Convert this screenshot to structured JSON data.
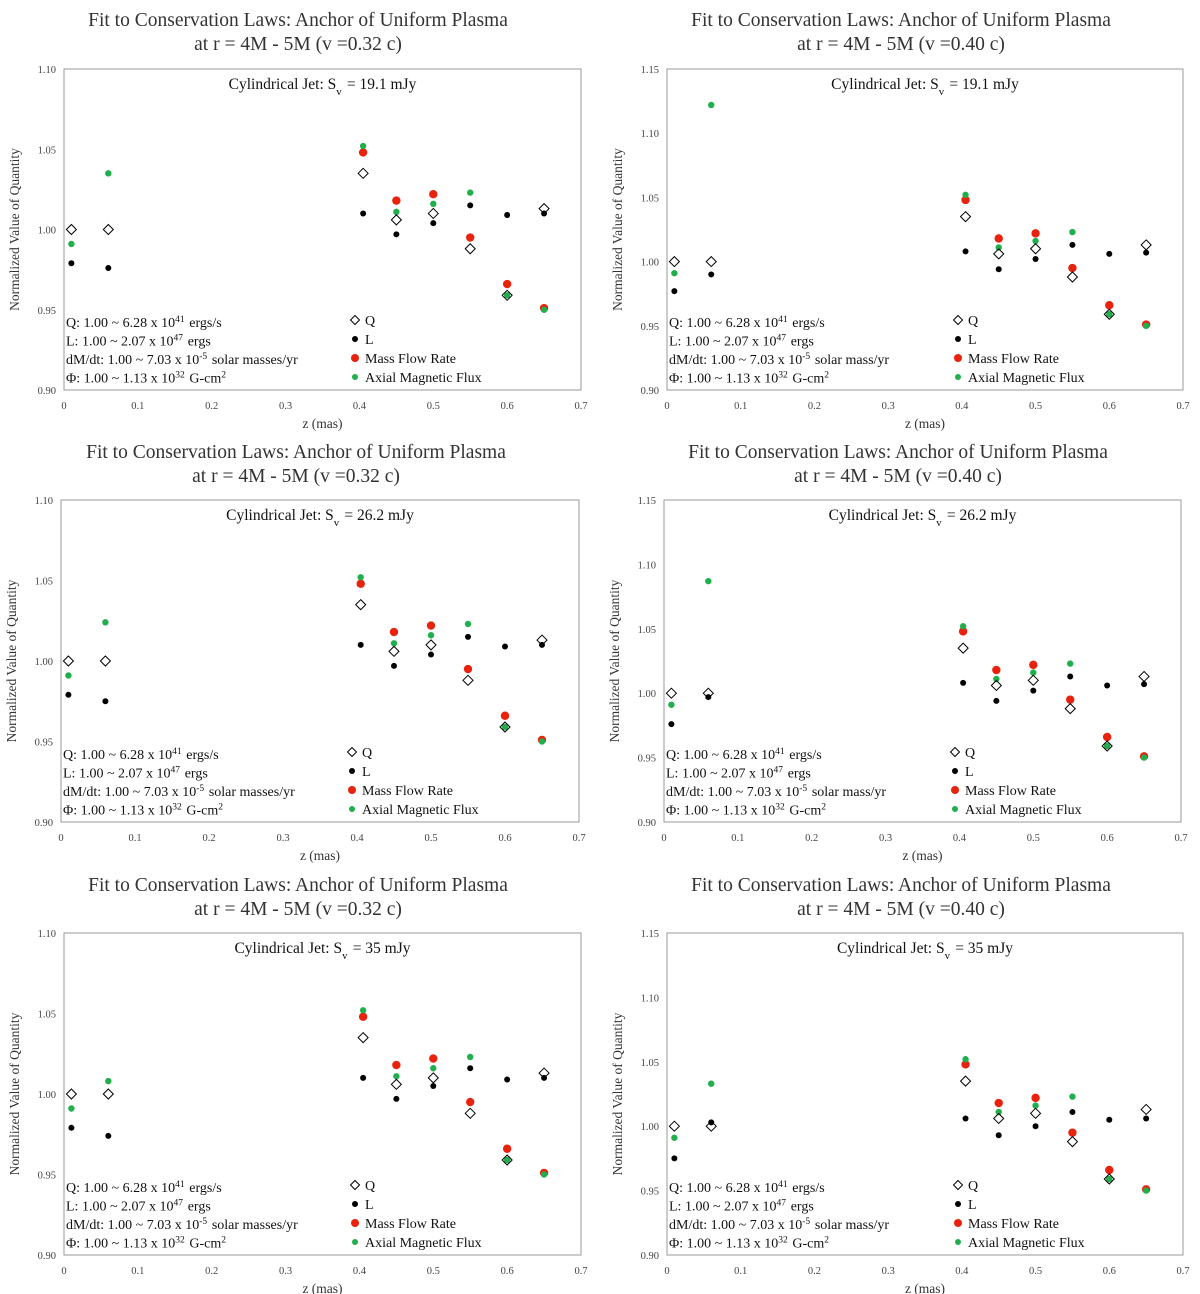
{
  "common": {
    "xlabel": "z (mas)",
    "ylabel": "Normalized Value of Quantity",
    "x_ticks": [
      "0",
      "0.1",
      "0.2",
      "0.3",
      "0.4",
      "0.5",
      "0.6",
      "0.7"
    ],
    "legend": {
      "q": "Q",
      "l": "L",
      "mdot": "Mass Flow Rate",
      "phi": "Axial Magnetic Flux"
    },
    "colors": {
      "q": "#000000",
      "l": "#000000",
      "mdot": "#e8220c",
      "phi": "#1faf4b",
      "frame": "#9a9a9a"
    }
  },
  "chart_data": [
    {
      "type": "scatter",
      "title_line1": "Fit to Conservation Laws: Anchor of Uniform Plasma",
      "title_line2": "at r = 4M - 5M (v =0.32 c)",
      "jet_label": "Cylindrical Jet: Sv = 19.1 mJy",
      "xlabel": "z (mas)",
      "ylabel": "Normalized Value of Quantity",
      "xlim": [
        0,
        0.7
      ],
      "ylim": [
        0.9,
        1.1
      ],
      "y_ticks": [
        "0.90",
        "0.95",
        "1.00",
        "1.05",
        "1.10"
      ],
      "notes": [
        "Q: 1.00 ~ 6.28 x 10^41 ergs/s",
        "L: 1.00 ~ 2.07 x 10^47 ergs",
        "dM/dt: 1.00 ~ 7.03 x 10^-5 solar masses/yr",
        "Φ: 1.00 ~ 1.13 x 10^32 G-cm^2"
      ],
      "series": [
        {
          "name": "Q",
          "x": [
            0.01,
            0.06,
            0.405,
            0.45,
            0.5,
            0.55,
            0.6,
            0.65
          ],
          "y": [
            1.0,
            1.0,
            1.035,
            1.006,
            1.01,
            0.988,
            0.959,
            1.013
          ]
        },
        {
          "name": "L",
          "x": [
            0.01,
            0.06,
            0.405,
            0.45,
            0.5,
            0.55,
            0.6,
            0.65
          ],
          "y": [
            0.979,
            0.976,
            1.01,
            0.997,
            1.004,
            1.015,
            1.009,
            1.01
          ]
        },
        {
          "name": "Mass Flow Rate",
          "x": [
            0.405,
            0.45,
            0.5,
            0.55,
            0.6,
            0.65
          ],
          "y": [
            1.048,
            1.018,
            1.022,
            0.995,
            0.966,
            0.951
          ]
        },
        {
          "name": "Axial Magnetic Flux",
          "x": [
            0.01,
            0.06,
            0.405,
            0.45,
            0.5,
            0.55,
            0.6,
            0.65
          ],
          "y": [
            0.991,
            1.035,
            1.052,
            1.011,
            1.016,
            1.023,
            0.959,
            0.95
          ]
        }
      ]
    },
    {
      "type": "scatter",
      "title_line1": "Fit to Conservation Laws: Anchor of Uniform Plasma",
      "title_line2": "at r = 4M - 5M (v =0.40 c)",
      "jet_label": "Cylindrical Jet: Sv = 19.1 mJy",
      "xlabel": "z (mas)",
      "ylabel": "Normalized Value of Quantity",
      "xlim": [
        0,
        0.7
      ],
      "ylim": [
        0.9,
        1.15
      ],
      "y_ticks": [
        "0.90",
        "0.95",
        "1.00",
        "1.05",
        "1.10",
        "1.15"
      ],
      "notes": [
        "Q: 1.00 ~ 6.28 x 10^41 ergs/s",
        "L: 1.00 ~ 2.07 x 10^47 ergs",
        "dM/dt: 1.00 ~ 7.03 x 10^-5 solar mass/yr",
        "Φ: 1.00 ~ 1.13 x 10^32 G-cm^2"
      ],
      "series": [
        {
          "name": "Q",
          "x": [
            0.01,
            0.06,
            0.405,
            0.45,
            0.5,
            0.55,
            0.6,
            0.65
          ],
          "y": [
            1.0,
            1.0,
            1.035,
            1.006,
            1.01,
            0.988,
            0.959,
            1.013
          ]
        },
        {
          "name": "L",
          "x": [
            0.01,
            0.06,
            0.405,
            0.45,
            0.5,
            0.55,
            0.6,
            0.65
          ],
          "y": [
            0.977,
            0.99,
            1.008,
            0.994,
            1.002,
            1.013,
            1.006,
            1.007
          ]
        },
        {
          "name": "Mass Flow Rate",
          "x": [
            0.405,
            0.45,
            0.5,
            0.55,
            0.6,
            0.65
          ],
          "y": [
            1.048,
            1.018,
            1.022,
            0.995,
            0.966,
            0.951
          ]
        },
        {
          "name": "Axial Magnetic Flux",
          "x": [
            0.01,
            0.06,
            0.405,
            0.45,
            0.5,
            0.55,
            0.6,
            0.65
          ],
          "y": [
            0.991,
            1.122,
            1.052,
            1.011,
            1.016,
            1.023,
            0.959,
            0.95
          ]
        }
      ]
    },
    {
      "type": "scatter",
      "title_line1": "Fit to Conservation Laws: Anchor of Uniform Plasma",
      "title_line2": "at r = 4M - 5M (v =0.32 c)",
      "jet_label": "Cylindrical Jet: Sv = 26.2 mJy",
      "xlabel": "z (mas)",
      "ylabel": "Normalized Value of Quantity",
      "xlim": [
        0,
        0.7
      ],
      "ylim": [
        0.9,
        1.1
      ],
      "y_ticks": [
        "0.90",
        "0.95",
        "1.00",
        "1.05",
        "1.10"
      ],
      "notes": [
        "Q: 1.00 ~ 6.28 x 10^41 ergs/s",
        "L: 1.00 ~ 2.07 x 10^47 ergs",
        "dM/dt: 1.00 ~ 7.03 x 10^-5 solar masses/yr",
        "Φ: 1.00 ~ 1.13 x 10^32 G-cm^2"
      ],
      "series": [
        {
          "name": "Q",
          "x": [
            0.01,
            0.06,
            0.405,
            0.45,
            0.5,
            0.55,
            0.6,
            0.65
          ],
          "y": [
            1.0,
            1.0,
            1.035,
            1.006,
            1.01,
            0.988,
            0.959,
            1.013
          ]
        },
        {
          "name": "L",
          "x": [
            0.01,
            0.06,
            0.405,
            0.45,
            0.5,
            0.55,
            0.6,
            0.65
          ],
          "y": [
            0.979,
            0.975,
            1.01,
            0.997,
            1.004,
            1.015,
            1.009,
            1.01
          ]
        },
        {
          "name": "Mass Flow Rate",
          "x": [
            0.405,
            0.45,
            0.5,
            0.55,
            0.6,
            0.65
          ],
          "y": [
            1.048,
            1.018,
            1.022,
            0.995,
            0.966,
            0.951
          ]
        },
        {
          "name": "Axial Magnetic Flux",
          "x": [
            0.01,
            0.06,
            0.405,
            0.45,
            0.5,
            0.55,
            0.6,
            0.65
          ],
          "y": [
            0.991,
            1.024,
            1.052,
            1.011,
            1.016,
            1.023,
            0.959,
            0.95
          ]
        }
      ]
    },
    {
      "type": "scatter",
      "title_line1": "Fit to Conservation Laws: Anchor of Uniform Plasma",
      "title_line2": "at r = 4M - 5M (v =0.40 c)",
      "jet_label": "Cylindrical Jet: Sv = 26.2 mJy",
      "xlabel": "z (mas)",
      "ylabel": "Normalized Value of Quantity",
      "xlim": [
        0,
        0.7
      ],
      "ylim": [
        0.9,
        1.15
      ],
      "y_ticks": [
        "0.90",
        "0.95",
        "1.00",
        "1.05",
        "1.10",
        "1.15"
      ],
      "notes": [
        "Q: 1.00 ~ 6.28 x 10^41 ergs/s",
        "L: 1.00 ~ 2.07 x 10^47 ergs",
        "dM/dt: 1.00 ~ 7.03 x 10^-5 solar mass/yr",
        "Φ: 1.00 ~ 1.13 x 10^32 G-cm^2"
      ],
      "series": [
        {
          "name": "Q",
          "x": [
            0.01,
            0.06,
            0.405,
            0.45,
            0.5,
            0.55,
            0.6,
            0.65
          ],
          "y": [
            1.0,
            1.0,
            1.035,
            1.006,
            1.01,
            0.988,
            0.959,
            1.013
          ]
        },
        {
          "name": "L",
          "x": [
            0.01,
            0.06,
            0.405,
            0.45,
            0.5,
            0.55,
            0.6,
            0.65
          ],
          "y": [
            0.976,
            0.997,
            1.008,
            0.994,
            1.002,
            1.013,
            1.006,
            1.007
          ]
        },
        {
          "name": "Mass Flow Rate",
          "x": [
            0.405,
            0.45,
            0.5,
            0.55,
            0.6,
            0.65
          ],
          "y": [
            1.048,
            1.018,
            1.022,
            0.995,
            0.966,
            0.951
          ]
        },
        {
          "name": "Axial Magnetic Flux",
          "x": [
            0.01,
            0.06,
            0.405,
            0.45,
            0.5,
            0.55,
            0.6,
            0.65
          ],
          "y": [
            0.991,
            1.087,
            1.052,
            1.011,
            1.016,
            1.023,
            0.959,
            0.95
          ]
        }
      ]
    },
    {
      "type": "scatter",
      "title_line1": "Fit to Conservation Laws: Anchor of Uniform Plasma",
      "title_line2": "at r = 4M - 5M (v =0.32 c)",
      "jet_label": "Cylindrical Jet: Sv = 35 mJy",
      "xlabel": "z (mas)",
      "ylabel": "Normalized Value of Quantity",
      "xlim": [
        0,
        0.7
      ],
      "ylim": [
        0.9,
        1.1
      ],
      "y_ticks": [
        "0.90",
        "0.95",
        "1.00",
        "1.05",
        "1.10"
      ],
      "notes": [
        "Q: 1.00 ~ 6.28 x 10^41 ergs/s",
        "L: 1.00 ~ 2.07 x 10^47 ergs",
        "dM/dt: 1.00 ~ 7.03 x 10^-5 solar masses/yr",
        "Φ: 1.00 ~ 1.13 x 10^32 G-cm^2"
      ],
      "series": [
        {
          "name": "Q",
          "x": [
            0.01,
            0.06,
            0.405,
            0.45,
            0.5,
            0.55,
            0.6,
            0.65
          ],
          "y": [
            1.0,
            1.0,
            1.035,
            1.006,
            1.01,
            0.988,
            0.959,
            1.013
          ]
        },
        {
          "name": "L",
          "x": [
            0.01,
            0.06,
            0.405,
            0.45,
            0.5,
            0.55,
            0.6,
            0.65
          ],
          "y": [
            0.979,
            0.974,
            1.01,
            0.997,
            1.005,
            1.016,
            1.009,
            1.01
          ]
        },
        {
          "name": "Mass Flow Rate",
          "x": [
            0.405,
            0.45,
            0.5,
            0.55,
            0.6,
            0.65
          ],
          "y": [
            1.048,
            1.018,
            1.022,
            0.995,
            0.966,
            0.951
          ]
        },
        {
          "name": "Axial Magnetic Flux",
          "x": [
            0.01,
            0.06,
            0.405,
            0.45,
            0.5,
            0.55,
            0.6,
            0.65
          ],
          "y": [
            0.991,
            1.008,
            1.052,
            1.011,
            1.016,
            1.023,
            0.959,
            0.95
          ]
        }
      ]
    },
    {
      "type": "scatter",
      "title_line1": "Fit to Conservation Laws: Anchor of Uniform Plasma",
      "title_line2": "at r = 4M - 5M (v =0.40 c)",
      "jet_label": "Cylindrical Jet: Sv = 35 mJy",
      "xlabel": "z (mas)",
      "ylabel": "Normalized Value of Quantity",
      "xlim": [
        0,
        0.7
      ],
      "ylim": [
        0.9,
        1.15
      ],
      "y_ticks": [
        "0.90",
        "0.95",
        "1.00",
        "1.05",
        "1.10",
        "1.15"
      ],
      "notes": [
        "Q: 1.00 ~ 6.28 x 10^41 ergs/s",
        "L: 1.00 ~ 2.07 x 10^47 ergs",
        "dM/dt: 1.00 ~ 7.03 x 10^-5 solar mass/yr",
        "Φ: 1.00 ~ 1.13 x 10^32 G-cm^2"
      ],
      "series": [
        {
          "name": "Q",
          "x": [
            0.01,
            0.06,
            0.405,
            0.45,
            0.5,
            0.55,
            0.6,
            0.65
          ],
          "y": [
            1.0,
            1.0,
            1.035,
            1.006,
            1.01,
            0.988,
            0.959,
            1.013
          ]
        },
        {
          "name": "L",
          "x": [
            0.01,
            0.06,
            0.405,
            0.45,
            0.5,
            0.55,
            0.6,
            0.65
          ],
          "y": [
            0.975,
            1.003,
            1.006,
            0.993,
            1.0,
            1.011,
            1.005,
            1.006
          ]
        },
        {
          "name": "Mass Flow Rate",
          "x": [
            0.405,
            0.45,
            0.5,
            0.55,
            0.6,
            0.65
          ],
          "y": [
            1.048,
            1.018,
            1.022,
            0.995,
            0.966,
            0.951
          ]
        },
        {
          "name": "Axial Magnetic Flux",
          "x": [
            0.01,
            0.06,
            0.405,
            0.45,
            0.5,
            0.55,
            0.6,
            0.65
          ],
          "y": [
            0.991,
            1.033,
            1.052,
            1.011,
            1.016,
            1.023,
            0.959,
            0.95
          ]
        }
      ]
    }
  ]
}
